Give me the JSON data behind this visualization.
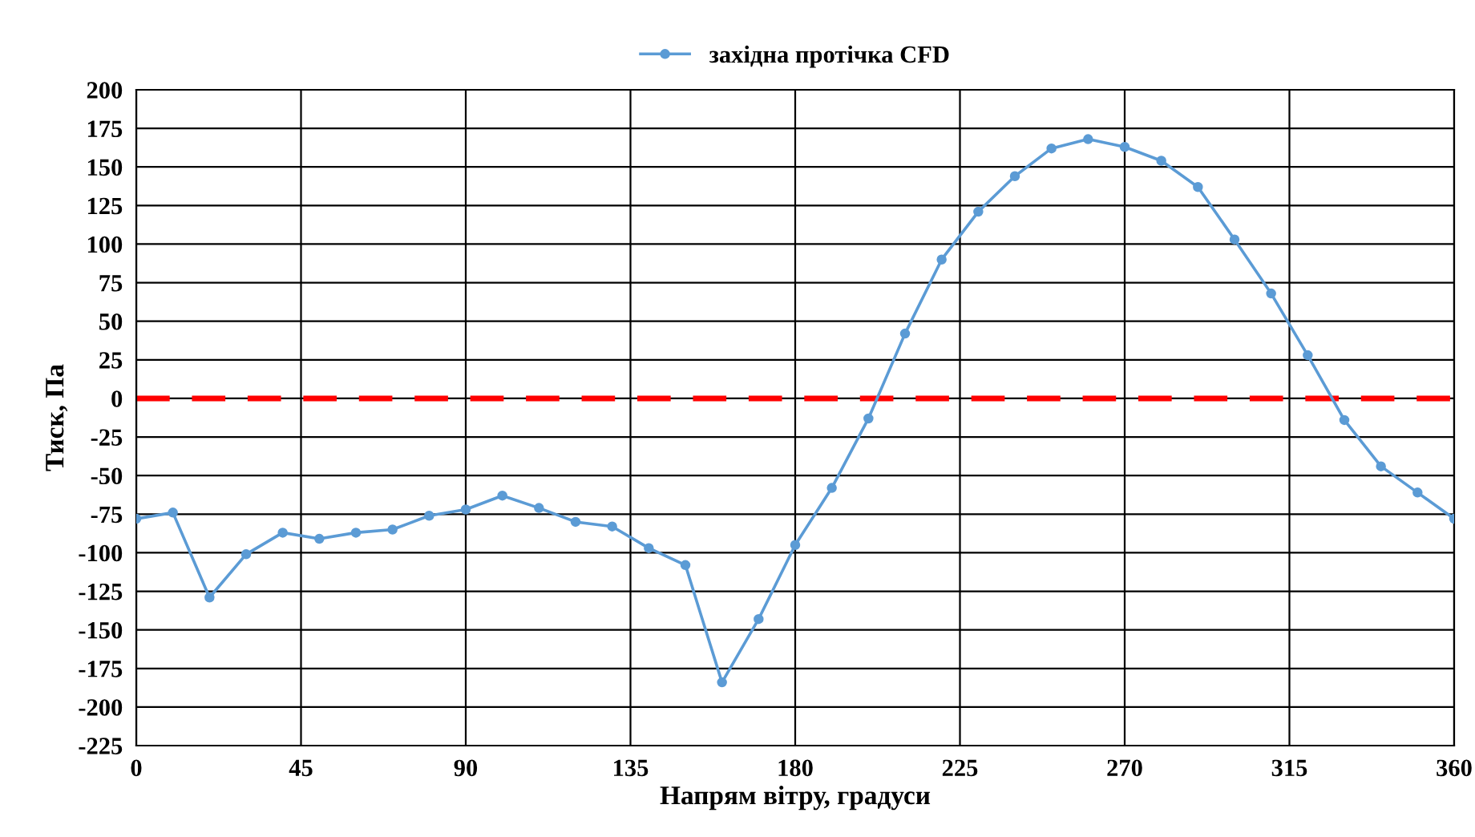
{
  "chart_data": {
    "type": "line",
    "xlabel": "Напрям вітру, градуси",
    "ylabel": "Тиск, Па",
    "x": [
      0,
      10,
      20,
      30,
      40,
      50,
      60,
      70,
      80,
      90,
      100,
      110,
      120,
      130,
      140,
      150,
      160,
      170,
      180,
      190,
      200,
      210,
      220,
      230,
      240,
      250,
      260,
      270,
      280,
      290,
      300,
      310,
      320,
      330,
      340,
      350,
      360
    ],
    "series": [
      {
        "name": "західна протічка CFD",
        "color": "#5b9bd5",
        "values": [
          -78,
          -74,
          -129,
          -101,
          -87,
          -91,
          -87,
          -85,
          -76,
          -72,
          -63,
          -71,
          -80,
          -83,
          -97,
          -108,
          -184,
          -143,
          -95,
          -58,
          -13,
          42,
          90,
          121,
          144,
          162,
          168,
          163,
          154,
          137,
          103,
          68,
          28,
          -14,
          -44,
          -61,
          -78
        ]
      }
    ],
    "xlim": [
      0,
      360
    ],
    "xticks": [
      0,
      45,
      90,
      135,
      180,
      225,
      270,
      315,
      360
    ],
    "ylim": [
      -225,
      200
    ],
    "yticks": [
      -225,
      -200,
      -175,
      -150,
      -125,
      -100,
      -75,
      -50,
      -25,
      0,
      25,
      50,
      75,
      100,
      125,
      150,
      175,
      200
    ],
    "ref_lines": [
      {
        "axis": "y",
        "value": 0,
        "color": "#ff0000",
        "line_style": "dashed"
      }
    ],
    "grid": true,
    "legend": "top",
    "marker": "circle",
    "line_style": "solid"
  }
}
